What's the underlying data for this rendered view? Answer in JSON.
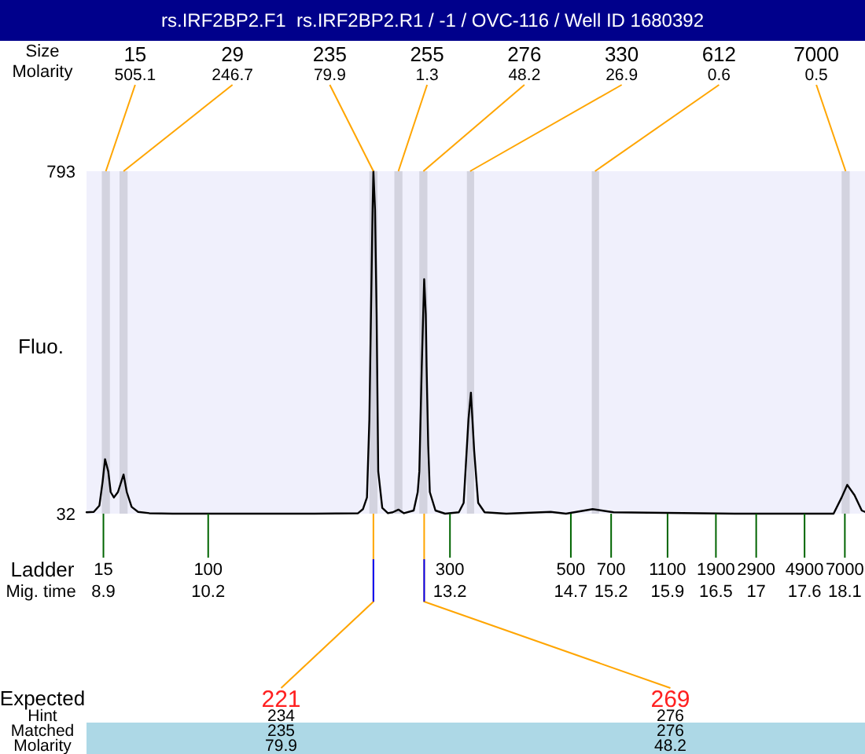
{
  "chart_data": {
    "type": "line",
    "title": "rs.IRF2BP2.F1  rs.IRF2BP2.R1 / -1 / OVC-116 / Well ID 1680392",
    "ylabel": "Fluo.",
    "xlabel": "Mig. time",
    "x": [
      8.69,
      8.78,
      8.85,
      8.89,
      8.92,
      8.96,
      8.99,
      9.03,
      9.08,
      9.15,
      9.19,
      9.25,
      9.33,
      9.47,
      9.76,
      11.52,
      12.06,
      12.12,
      12.17,
      12.2,
      12.22,
      12.24,
      12.25,
      12.27,
      12.29,
      12.31,
      12.36,
      12.43,
      12.49,
      12.56,
      12.63,
      12.75,
      12.8,
      12.82,
      12.85,
      12.88,
      12.9,
      12.91,
      12.93,
      12.95,
      13.02,
      13.14,
      13.31,
      13.37,
      13.43,
      13.46,
      13.5,
      13.55,
      13.63,
      13.9,
      14.45,
      14.64,
      14.97,
      15.23,
      16.73,
      17.96,
      18.06,
      18.13,
      18.22,
      18.31,
      18.35
    ],
    "series": [
      {
        "color": "#000000",
        "values": [
          35,
          36,
          50,
          103,
          153,
          126,
          80,
          68,
          80,
          119,
          80,
          47,
          36,
          33,
          32,
          32,
          33,
          42,
          68,
          242,
          475,
          708,
          793,
          708,
          475,
          126,
          45,
          33,
          35,
          41,
          33,
          39,
          80,
          126,
          359,
          553,
          475,
          359,
          184,
          80,
          39,
          32,
          35,
          56,
          242,
          301,
          173,
          56,
          35,
          32,
          36,
          32,
          42,
          35,
          32,
          32,
          68,
          96,
          73,
          39,
          36
        ]
      }
    ],
    "xlim": [
      8.69,
      18.35
    ],
    "ylim": [
      32,
      793
    ],
    "yticks": [
      32,
      793
    ],
    "xticks": [
      8.9,
      10.2,
      13.2,
      14.7,
      15.2,
      15.9,
      16.5,
      17,
      17.6,
      18.1
    ],
    "bands": [
      {
        "axis": "x",
        "from": 8.88,
        "to": 8.98,
        "label": "15",
        "color": "#d3d3df"
      },
      {
        "axis": "x",
        "from": 9.1,
        "to": 9.2,
        "label": "29",
        "color": "#d3d3df"
      },
      {
        "axis": "x",
        "from": 12.2,
        "to": 12.3,
        "label": "235",
        "color": "#d3d3df"
      },
      {
        "axis": "x",
        "from": 12.51,
        "to": 12.61,
        "label": "255",
        "color": "#d3d3df"
      },
      {
        "axis": "x",
        "from": 12.82,
        "to": 12.92,
        "label": "276",
        "color": "#d3d3df"
      },
      {
        "axis": "x",
        "from": 13.41,
        "to": 13.5,
        "label": "330",
        "color": "#d3d3df"
      },
      {
        "axis": "x",
        "from": 14.96,
        "to": 15.05,
        "label": "612",
        "color": "#d3d3df"
      },
      {
        "axis": "x",
        "from": 18.06,
        "to": 18.16,
        "label": "7000",
        "color": "#d3d3df"
      }
    ],
    "annotations": [
      "Size",
      "Molarity",
      {
        "text": "505.1",
        "x": 8.93,
        "y": 793
      },
      {
        "text": "246.7",
        "x": 9.15,
        "y": 793
      },
      {
        "text": "79.9",
        "x": 12.25,
        "y": 793
      },
      {
        "text": "1.3",
        "x": 12.56,
        "y": 793
      },
      {
        "text": "48.2",
        "x": 12.87,
        "y": 793
      },
      {
        "text": "26.9",
        "x": 13.45,
        "y": 793
      },
      {
        "text": "0.6",
        "x": 15.0,
        "y": 793
      },
      {
        "text": "0.5",
        "x": 18.11,
        "y": 793
      },
      "Ladder",
      "15",
      "100",
      "300",
      "500",
      "700",
      "1100",
      "1900",
      "2900",
      "4900",
      "7000",
      "Expected",
      "Hint",
      "Matched",
      "Molarity",
      {
        "text": "221",
        "x": 12.25,
        "y": 32
      },
      "234",
      "235",
      "79.9",
      {
        "text": "269",
        "x": 12.88,
        "y": 32
      },
      "276",
      "276",
      "48.2"
    ]
  }
}
